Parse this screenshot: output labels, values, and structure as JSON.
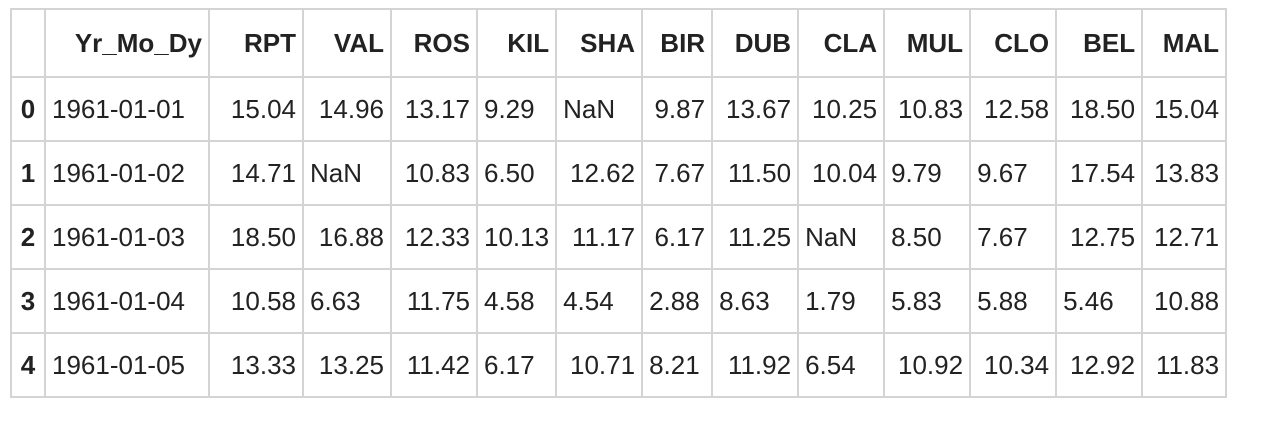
{
  "table": {
    "index_header": "",
    "columns": [
      "Yr_Mo_Dy",
      "RPT",
      "VAL",
      "ROS",
      "KIL",
      "SHA",
      "BIR",
      "DUB",
      "CLA",
      "MUL",
      "CLO",
      "BEL",
      "MAL"
    ],
    "rows": [
      {
        "index": "0",
        "cells": [
          "1961-01-01",
          "15.04",
          "14.96",
          "13.17",
          "9.29",
          "NaN",
          "9.87",
          "13.67",
          "10.25",
          "10.83",
          "12.58",
          "18.50",
          "15.04"
        ]
      },
      {
        "index": "1",
        "cells": [
          "1961-01-02",
          "14.71",
          "NaN",
          "10.83",
          "6.50",
          "12.62",
          "7.67",
          "11.50",
          "10.04",
          "9.79",
          "9.67",
          "17.54",
          "13.83"
        ]
      },
      {
        "index": "2",
        "cells": [
          "1961-01-03",
          "18.50",
          "16.88",
          "12.33",
          "10.13",
          "11.17",
          "6.17",
          "11.25",
          "NaN",
          "8.50",
          "7.67",
          "12.75",
          "12.71"
        ]
      },
      {
        "index": "3",
        "cells": [
          "1961-01-04",
          "10.58",
          "6.63",
          "11.75",
          "4.58",
          "4.54",
          "2.88",
          "8.63",
          "1.79",
          "5.83",
          "5.88",
          "5.46",
          "10.88"
        ]
      },
      {
        "index": "4",
        "cells": [
          "1961-01-05",
          "13.33",
          "13.25",
          "11.42",
          "6.17",
          "10.71",
          "8.21",
          "11.92",
          "6.54",
          "10.92",
          "10.34",
          "12.92",
          "11.83"
        ]
      }
    ]
  }
}
